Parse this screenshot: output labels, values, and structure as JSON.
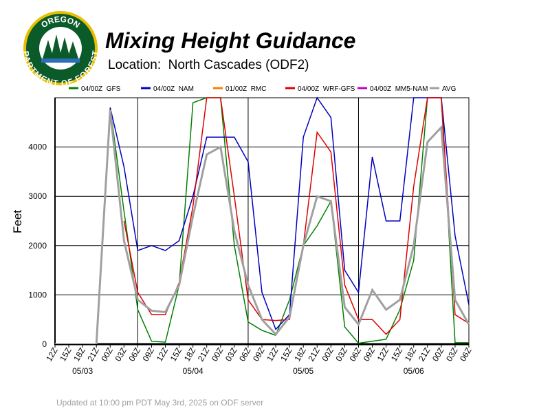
{
  "logo": {
    "top": "OREGON",
    "bottom": "DEPARTMENT OF FORESTRY"
  },
  "chart_data": {
    "type": "line",
    "title": "Mixing Height Guidance",
    "subtitle": "Location:  North Cascades (ODF2)",
    "ylabel": "Feet",
    "footer": "Updated at 10:00 pm PDT May 3rd, 2025 on ODF server",
    "categories": [
      "12Z",
      "15Z",
      "18Z",
      "21Z",
      "00Z",
      "03Z",
      "06Z",
      "09Z",
      "12Z",
      "15Z",
      "18Z",
      "21Z",
      "00Z",
      "03Z",
      "06Z",
      "09Z",
      "12Z",
      "15Z",
      "18Z",
      "21Z",
      "00Z",
      "03Z",
      "06Z",
      "09Z",
      "12Z",
      "15Z",
      "18Z",
      "21Z",
      "00Z",
      "03Z",
      "06Z"
    ],
    "dates": [
      "05/03",
      "05/04",
      "05/05",
      "05/06"
    ],
    "ylim": [
      0,
      5000
    ],
    "yticks": [
      0,
      1000,
      2000,
      3000,
      4000
    ],
    "grid": true,
    "legend": "top",
    "series": [
      {
        "name": "04/00Z  GFS",
        "color": "#008000",
        "width": 1.5,
        "values": [
          0,
          0,
          0,
          0,
          4800,
          2700,
          700,
          60,
          40,
          1200,
          4900,
          5000,
          5000,
          2000,
          450,
          280,
          180,
          900,
          2000,
          2400,
          2900,
          350,
          20,
          60,
          100,
          700,
          1700,
          5000,
          5000,
          30,
          30
        ]
      },
      {
        "name": "04/00Z  NAM",
        "color": "#0000c0",
        "width": 1.5,
        "values": [
          null,
          null,
          null,
          null,
          4800,
          3600,
          1900,
          2000,
          1900,
          2100,
          3000,
          4200,
          4200,
          4200,
          3700,
          1050,
          300,
          600,
          4200,
          5000,
          4600,
          1500,
          1050,
          3800,
          2500,
          2500,
          5000,
          5000,
          5000,
          2200,
          800
        ]
      },
      {
        "name": "01/00Z  RMC",
        "color": "#ff8000",
        "width": 1.5,
        "values": [
          null,
          null,
          null,
          null,
          null,
          null,
          null,
          null,
          null,
          null,
          null,
          null,
          null,
          null,
          null,
          null,
          null,
          null,
          null,
          null,
          null,
          null,
          null,
          null,
          null,
          null,
          null,
          null,
          null,
          null,
          null
        ]
      },
      {
        "name": "04/00Z  WRF-GFS",
        "color": "#e00000",
        "width": 1.5,
        "values": [
          null,
          null,
          null,
          null,
          null,
          2500,
          1050,
          600,
          600,
          1250,
          2800,
          5000,
          5000,
          3000,
          900,
          500,
          480,
          500,
          2000,
          4300,
          3900,
          1200,
          500,
          500,
          200,
          500,
          3200,
          5000,
          5000,
          600,
          420
        ]
      },
      {
        "name": "04/00Z  MM5-NAM",
        "color": "#c000c0",
        "width": 1.5,
        "values": [
          null,
          null,
          null,
          null,
          null,
          null,
          null,
          null,
          null,
          null,
          null,
          null,
          null,
          null,
          null,
          null,
          null,
          null,
          null,
          null,
          null,
          null,
          null,
          null,
          null,
          null,
          null,
          null,
          null,
          null,
          null
        ]
      },
      {
        "name": "AVG",
        "color": "#a0a0a0",
        "width": 3,
        "values": [
          0,
          0,
          0,
          0,
          4750,
          2100,
          900,
          680,
          650,
          1200,
          2600,
          3850,
          4000,
          2300,
          1200,
          500,
          200,
          550,
          2000,
          3000,
          2900,
          750,
          400,
          1100,
          700,
          900,
          2000,
          4100,
          4400,
          900,
          400
        ]
      }
    ]
  }
}
